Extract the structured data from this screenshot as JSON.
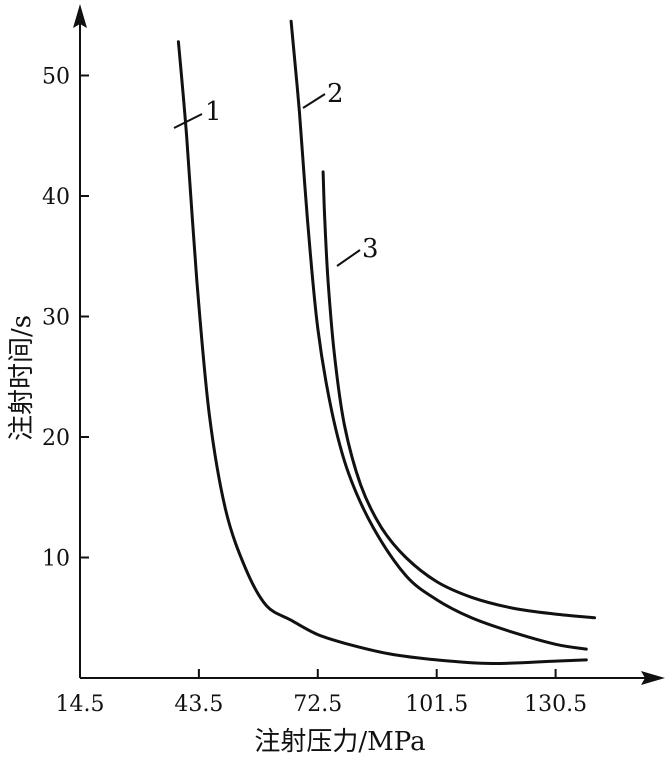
{
  "chart_data": {
    "type": "line",
    "xlabel": "注射压力/MPa",
    "ylabel": "注射时间/s",
    "xticks": [
      14.5,
      43.5,
      72.5,
      101.5,
      130.5
    ],
    "yticks": [
      10,
      20,
      30,
      40,
      50
    ],
    "xlim": [
      14.5,
      145
    ],
    "ylim": [
      0,
      55
    ],
    "grid": false,
    "series": [
      {
        "name": "1",
        "x": [
          38.5,
          40.5,
          43,
          46,
          50,
          55,
          60,
          66,
          72.5,
          80,
          90,
          101.5,
          115,
          130.5,
          138
        ],
        "y": [
          52.8,
          45,
          33,
          22,
          14,
          9,
          6,
          4.8,
          3.6,
          2.8,
          2.0,
          1.5,
          1.2,
          1.4,
          1.5
        ]
      },
      {
        "name": "2",
        "x": [
          66,
          68,
          70,
          72.5,
          76,
          80,
          86,
          94,
          101.5,
          110,
          120,
          130.5,
          138
        ],
        "y": [
          54.5,
          47,
          38,
          29,
          22,
          17,
          12.5,
          8.5,
          6.5,
          5.0,
          3.8,
          2.8,
          2.4
        ]
      },
      {
        "name": "3",
        "x": [
          73.8,
          74.2,
          75,
          76.5,
          79,
          83,
          88,
          94,
          101.5,
          110,
          120,
          130.5,
          140
        ],
        "y": [
          42,
          38,
          33,
          27,
          21,
          16,
          12.5,
          10,
          8,
          6.7,
          5.8,
          5.3,
          5.0
        ]
      }
    ]
  }
}
